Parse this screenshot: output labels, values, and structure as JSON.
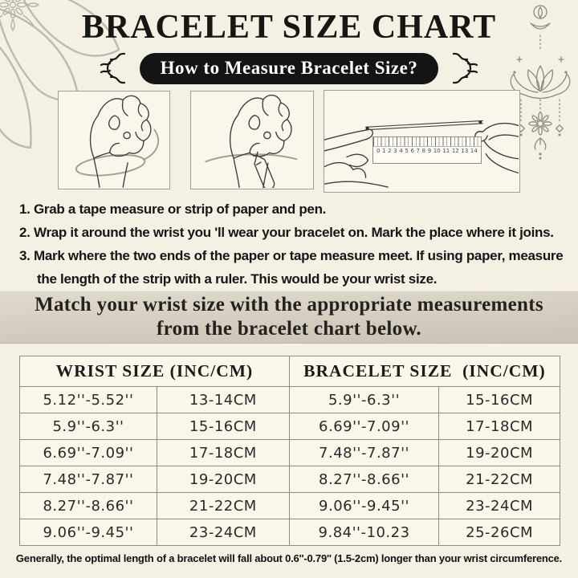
{
  "page": {
    "background": "#f5f0e4",
    "ink": "#1c1c1c",
    "badge_background": "#141414",
    "banner_background": "#d4cdc0",
    "table_line_color": "#8f8c84"
  },
  "header": {
    "title": "BRACELET SIZE CHART",
    "badge_label": "How to Measure Bracelet Size?"
  },
  "how_to": {
    "ruler_numbers": [
      "0",
      "1",
      "2",
      "3",
      "4",
      "5",
      "6",
      "7",
      "8",
      "9",
      "10",
      "11",
      "12",
      "13",
      "14"
    ],
    "steps": [
      {
        "lines": [
          "1. Grab a tape measure or strip of paper and pen."
        ]
      },
      {
        "lines": [
          "2. Wrap it around the wrist you 'll wear your bracelet on. Mark the place where it joins."
        ]
      },
      {
        "lines": [
          "3. Mark where the two ends of the paper or tape measure meet. If using paper, measure",
          "the length of the strip with a ruler. This would be your wrist size."
        ]
      }
    ]
  },
  "banner": {
    "line1": "Match your wrist size with the appropriate measurements",
    "line2": "from the bracelet chart below."
  },
  "size_table": {
    "header_left": "WRIST SIZE (INC/CM)",
    "header_right": "BRACELET SIZE  (INC/CM)",
    "rows": [
      [
        "5.12''-5.52''",
        "13-14CM",
        "5.9''-6.3''",
        "15-16CM"
      ],
      [
        "5.9''-6.3''",
        "15-16CM",
        "6.69''-7.09''",
        "17-18CM"
      ],
      [
        "6.69''-7.09''",
        "17-18CM",
        "7.48''-7.87''",
        "19-20CM"
      ],
      [
        "7.48''-7.87''",
        "19-20CM",
        "8.27''-8.66''",
        "21-22CM"
      ],
      [
        "8.27''-8.66''",
        "21-22CM",
        "9.06''-9.45''",
        "23-24CM"
      ],
      [
        "9.06''-9.45''",
        "23-24CM",
        "9.84''-10.23",
        "25-26CM"
      ]
    ]
  },
  "footnote": "Generally, the optimal length of a bracelet will fall about 0.6''-0.79'' (1.5-2cm) longer than your wrist circumference."
}
